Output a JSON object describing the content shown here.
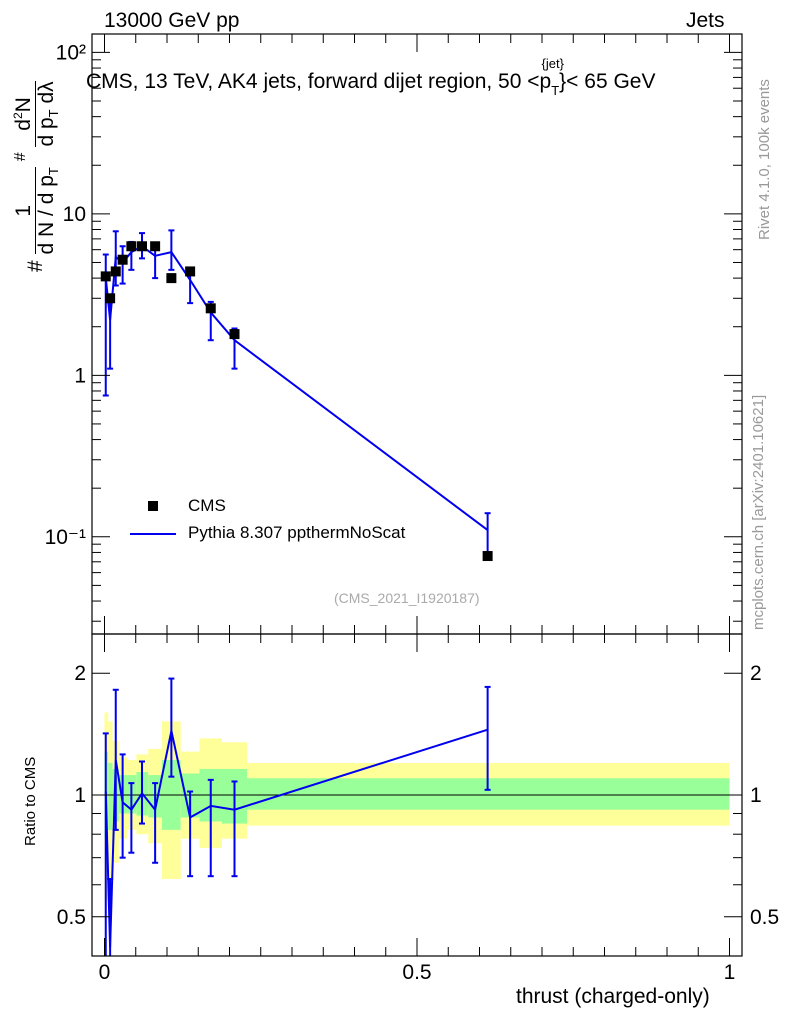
{
  "header": {
    "left": "13000 GeV pp",
    "right": "Jets"
  },
  "side": {
    "rivet": "Rivet 4.1.0,  100k events",
    "mcplots": "mcplots.cern.ch [arXiv:2401.10621]"
  },
  "title": "CMS, 13 TeV, AK4 jets, forward dijet region, 50 <",
  "title_pt": "p",
  "title_sub": "T",
  "title_sup": "{jet}",
  "title_end": "}< 65 GeV",
  "ylabel_main": {
    "one": "1",
    "hash": "#",
    "denom": "d N / d p",
    "denom_sub": "T",
    "num": "d",
    "num_sup": "2",
    "num_n": "N",
    "num_den": "d p",
    "num_den_sub": "T",
    "num_lambda": "dλ"
  },
  "analysis_id": "(CMS_2021_I1920187)",
  "legend": {
    "data_label": "CMS",
    "mc_label": "Pythia 8.307 ppthermNoScat"
  },
  "colors": {
    "mc": "#0000ee",
    "band_inner": "#99ff99",
    "band_outer": "#ffff99",
    "data": "#000000"
  },
  "chart_data": [
    {
      "type": "scatter",
      "panel": "main",
      "yscale": "log",
      "xlim": [
        -0.02,
        1.02
      ],
      "ylim": [
        0.025,
        130
      ],
      "ytick_labels": [
        "10⁻¹",
        "1",
        "10",
        "10²"
      ],
      "ytick_values": [
        0.1,
        1,
        10,
        100
      ],
      "series": [
        {
          "name": "CMS",
          "x": [
            0.002,
            0.009,
            0.018,
            0.029,
            0.043,
            0.06,
            0.081,
            0.107,
            0.137,
            0.17,
            0.208,
            0.613
          ],
          "values": [
            4.1,
            3.0,
            4.4,
            5.2,
            6.3,
            6.3,
            6.3,
            4.0,
            4.4,
            2.6,
            1.8,
            0.076
          ],
          "err_low": [
            3.35,
            1.9,
            1.8,
            2.1,
            1.7,
            1.3,
            1.5,
            1.0,
            1.2,
            0.9,
            0.7,
            0.0
          ],
          "err_high": [
            2.4,
            2.0,
            3.3,
            2.7,
            0.8,
            1.7,
            0.9,
            2.6,
            0.6,
            0.4,
            0.3,
            0.0
          ]
        },
        {
          "name": "Pythia 8.307 ppthermNoScat",
          "x": [
            0.002,
            0.009,
            0.018,
            0.029,
            0.043,
            0.06,
            0.081,
            0.107,
            0.137,
            0.17,
            0.208,
            0.613
          ],
          "values": [
            4.0,
            2.2,
            5.4,
            5.0,
            5.8,
            6.3,
            5.5,
            5.8,
            3.9,
            2.45,
            1.65,
            0.11
          ],
          "err_low": [
            3.25,
            1.1,
            1.8,
            1.3,
            1.3,
            1.0,
            1.5,
            1.3,
            1.1,
            0.8,
            0.55,
            0.035
          ],
          "err_high": [
            1.6,
            0.9,
            2.4,
            1.3,
            0.9,
            1.3,
            0.8,
            2.1,
            0.6,
            0.4,
            0.3,
            0.03
          ]
        }
      ]
    },
    {
      "type": "line",
      "panel": "ratio",
      "title": "",
      "xlabel": "thrust (charged-only)",
      "ylabel": "Ratio to CMS",
      "xlim": [
        -0.02,
        1.02
      ],
      "ylim": [
        0.4,
        2.5
      ],
      "xtick_labels": [
        "0",
        "0.5",
        "1"
      ],
      "xtick_values": [
        0,
        0.5,
        1
      ],
      "ytick_labels": [
        "0.5",
        "1",
        "2"
      ],
      "ytick_values": [
        0.5,
        1,
        2
      ],
      "bands": [
        {
          "x0": 0.0,
          "x1": 0.006,
          "inner": [
            0.78,
            1.28
          ],
          "outer": [
            0.55,
            1.6
          ]
        },
        {
          "x0": 0.006,
          "x1": 0.013,
          "inner": [
            0.82,
            1.2
          ],
          "outer": [
            0.6,
            1.52
          ]
        },
        {
          "x0": 0.013,
          "x1": 0.023,
          "inner": [
            0.86,
            1.16
          ],
          "outer": [
            0.68,
            1.36
          ]
        },
        {
          "x0": 0.023,
          "x1": 0.036,
          "inner": [
            0.9,
            1.12
          ],
          "outer": [
            0.78,
            1.24
          ]
        },
        {
          "x0": 0.036,
          "x1": 0.051,
          "inner": [
            0.9,
            1.12
          ],
          "outer": [
            0.82,
            1.22
          ]
        },
        {
          "x0": 0.051,
          "x1": 0.07,
          "inner": [
            0.89,
            1.14
          ],
          "outer": [
            0.8,
            1.26
          ]
        },
        {
          "x0": 0.07,
          "x1": 0.092,
          "inner": [
            0.88,
            1.12
          ],
          "outer": [
            0.76,
            1.3
          ]
        },
        {
          "x0": 0.092,
          "x1": 0.122,
          "inner": [
            0.82,
            1.22
          ],
          "outer": [
            0.62,
            1.52
          ]
        },
        {
          "x0": 0.122,
          "x1": 0.152,
          "inner": [
            0.88,
            1.13
          ],
          "outer": [
            0.78,
            1.28
          ]
        },
        {
          "x0": 0.152,
          "x1": 0.188,
          "inner": [
            0.86,
            1.16
          ],
          "outer": [
            0.74,
            1.38
          ]
        },
        {
          "x0": 0.188,
          "x1": 0.228,
          "inner": [
            0.85,
            1.16
          ],
          "outer": [
            0.78,
            1.35
          ]
        },
        {
          "x0": 0.228,
          "x1": 1.0,
          "inner": [
            0.92,
            1.1
          ],
          "outer": [
            0.84,
            1.2
          ]
        }
      ],
      "series": [
        {
          "name": "Pythia 8.307 ppthermNoScat / CMS",
          "x": [
            0.002,
            0.009,
            0.018,
            0.029,
            0.043,
            0.06,
            0.081,
            0.107,
            0.137,
            0.17,
            0.208,
            0.613
          ],
          "values": [
            1.02,
            0.42,
            1.22,
            0.96,
            0.92,
            1.01,
            0.92,
            1.44,
            0.88,
            0.94,
            0.92,
            1.45
          ],
          "err_low": [
            0.8,
            0.2,
            0.4,
            0.26,
            0.2,
            0.16,
            0.24,
            0.33,
            0.25,
            0.31,
            0.29,
            0.42
          ],
          "err_high": [
            0.4,
            0.2,
            0.6,
            0.3,
            0.15,
            0.2,
            0.15,
            0.5,
            0.14,
            0.15,
            0.16,
            0.4
          ]
        }
      ]
    }
  ]
}
